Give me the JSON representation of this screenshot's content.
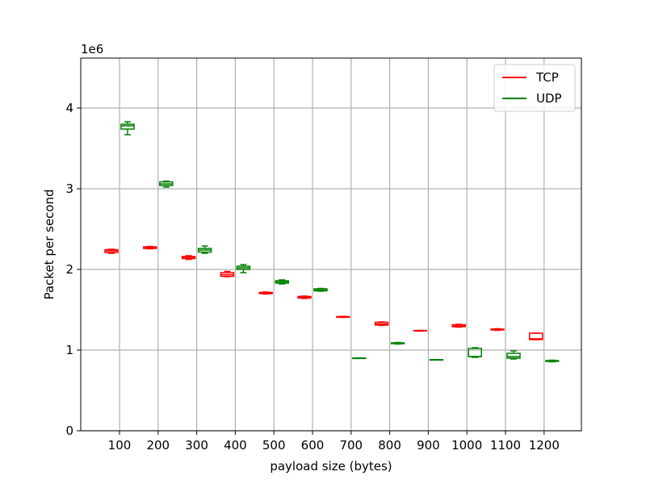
{
  "chart_data": {
    "type": "box",
    "xlabel": "payload size (bytes)",
    "ylabel": "Packet per second",
    "offset_label": "1e6",
    "categories": [
      "100",
      "200",
      "300",
      "400",
      "500",
      "600",
      "700",
      "800",
      "900",
      "1000",
      "1100",
      "1200"
    ],
    "y_ticks": [
      {
        "value": 0,
        "label": "0"
      },
      {
        "value": 1,
        "label": "1"
      },
      {
        "value": 2,
        "label": "2"
      },
      {
        "value": 3,
        "label": "3"
      },
      {
        "value": 4,
        "label": "4"
      }
    ],
    "ylim": [
      0,
      4.62
    ],
    "grid": true,
    "legend_position": "top-right",
    "series": [
      {
        "name": "TCP",
        "color": "#ff0000",
        "boxes": [
          {
            "min": 2.2,
            "q1": 2.21,
            "median": 2.23,
            "q3": 2.245,
            "max": 2.25
          },
          {
            "min": 2.255,
            "q1": 2.26,
            "median": 2.27,
            "q3": 2.28,
            "max": 2.285
          },
          {
            "min": 2.125,
            "q1": 2.135,
            "median": 2.15,
            "q3": 2.16,
            "max": 2.17
          },
          {
            "min": 1.91,
            "q1": 1.915,
            "median": 1.935,
            "q3": 1.96,
            "max": 1.975
          },
          {
            "min": 1.695,
            "q1": 1.7,
            "median": 1.705,
            "q3": 1.715,
            "max": 1.72
          },
          {
            "min": 1.64,
            "q1": 1.645,
            "median": 1.655,
            "q3": 1.665,
            "max": 1.67
          },
          {
            "min": 1.405,
            "q1": 1.408,
            "median": 1.41,
            "q3": 1.415,
            "max": 1.418
          },
          {
            "min": 1.305,
            "q1": 1.31,
            "median": 1.325,
            "q3": 1.345,
            "max": 1.35
          },
          {
            "min": 1.235,
            "q1": 1.238,
            "median": 1.24,
            "q3": 1.243,
            "max": 1.245
          },
          {
            "min": 1.285,
            "q1": 1.29,
            "median": 1.3,
            "q3": 1.315,
            "max": 1.32
          },
          {
            "min": 1.245,
            "q1": 1.25,
            "median": 1.255,
            "q3": 1.26,
            "max": 1.265
          },
          {
            "min": 1.13,
            "q1": 1.13,
            "median": 1.14,
            "q3": 1.21,
            "max": 1.21
          }
        ]
      },
      {
        "name": "UDP",
        "color": "#008000",
        "boxes": [
          {
            "min": 3.67,
            "q1": 3.74,
            "median": 3.78,
            "q3": 3.8,
            "max": 3.83
          },
          {
            "min": 3.02,
            "q1": 3.04,
            "median": 3.06,
            "q3": 3.085,
            "max": 3.095
          },
          {
            "min": 2.2,
            "q1": 2.215,
            "median": 2.24,
            "q3": 2.26,
            "max": 2.29
          },
          {
            "min": 1.96,
            "q1": 2.0,
            "median": 2.02,
            "q3": 2.04,
            "max": 2.06
          },
          {
            "min": 1.82,
            "q1": 1.83,
            "median": 1.845,
            "q3": 1.86,
            "max": 1.87
          },
          {
            "min": 1.73,
            "q1": 1.735,
            "median": 1.745,
            "q3": 1.76,
            "max": 1.765
          },
          {
            "min": 0.898,
            "q1": 0.899,
            "median": 0.9,
            "q3": 0.901,
            "max": 0.902
          },
          {
            "min": 1.075,
            "q1": 1.08,
            "median": 1.085,
            "q3": 1.09,
            "max": 1.095
          },
          {
            "min": 0.878,
            "q1": 0.879,
            "median": 0.88,
            "q3": 0.881,
            "max": 0.882
          },
          {
            "min": 0.91,
            "q1": 0.92,
            "median": 0.92,
            "q3": 1.02,
            "max": 1.03
          },
          {
            "min": 0.89,
            "q1": 0.9,
            "median": 0.92,
            "q3": 0.96,
            "max": 0.99
          },
          {
            "min": 0.855,
            "q1": 0.86,
            "median": 0.865,
            "q3": 0.87,
            "max": 0.875
          }
        ]
      }
    ]
  }
}
